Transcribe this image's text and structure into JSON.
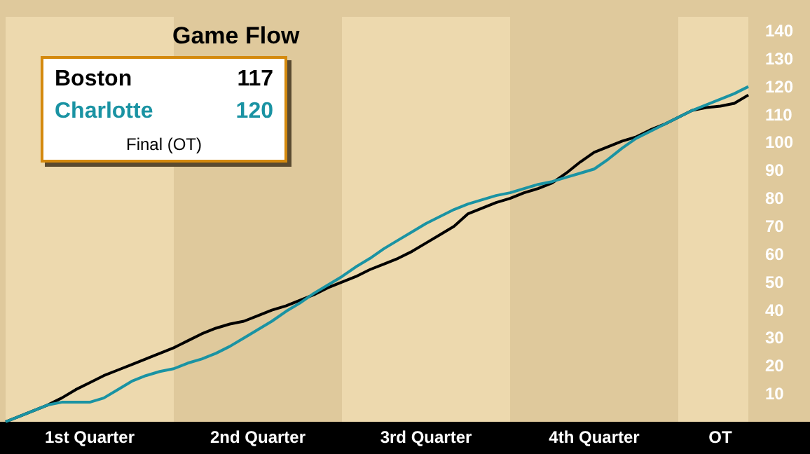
{
  "chart_data": {
    "type": "line",
    "title": "Game Flow",
    "annotations": [
      "117",
      "120",
      "Final (OT)"
    ],
    "legend": "top left",
    "categories": [
      null,
      null,
      null,
      null,
      null,
      null,
      "1st Quarter",
      null,
      null,
      null,
      null,
      null,
      null,
      null,
      null,
      null,
      null,
      null,
      "2nd Quarter",
      null,
      null,
      null,
      null,
      null,
      null,
      null,
      null,
      null,
      null,
      null,
      "3rd Quarter",
      null,
      null,
      null,
      null,
      null,
      null,
      null,
      null,
      null,
      null,
      null,
      "4th Quarter",
      null,
      null,
      null,
      null,
      null,
      null,
      null,
      null,
      "OT",
      null,
      null
    ],
    "ylim": [
      0,
      145
    ],
    "yticks": [
      10,
      20,
      30,
      40,
      50,
      60,
      70,
      80,
      90,
      100,
      110,
      120,
      130,
      140
    ],
    "series": [
      {
        "name": "Boston",
        "color": "#000000",
        "values": [
          0,
          2,
          4,
          6,
          8.5,
          11.5,
          14,
          16.5,
          18.5,
          20.5,
          22.5,
          24.5,
          26.5,
          29,
          31.5,
          33.5,
          35,
          36,
          38,
          40,
          41.5,
          43.5,
          45.5,
          48,
          50,
          52,
          54.5,
          56.5,
          58.5,
          61,
          64,
          67,
          70,
          74.5,
          76.5,
          78.5,
          80,
          82,
          83.5,
          85.5,
          89,
          93,
          96.5,
          98.5,
          100.5,
          102,
          104.5,
          106.5,
          109,
          111.5,
          112.5,
          113,
          114,
          117
        ]
      },
      {
        "name": "Charlotte",
        "color": "#1a93a3",
        "values": [
          0,
          2,
          4,
          6,
          7,
          7,
          7,
          8.5,
          11.5,
          14.5,
          16.5,
          18,
          19,
          21,
          22.5,
          24.5,
          27,
          30,
          33,
          36,
          39.5,
          42.5,
          46,
          49,
          52,
          55.5,
          58.5,
          62,
          65,
          68,
          71,
          73.5,
          76,
          78,
          79.5,
          81,
          82,
          83.5,
          85,
          86,
          87.5,
          89,
          90.5,
          94,
          98,
          101.5,
          104,
          106.5,
          109,
          111.5,
          113.5,
          115.5,
          117.5,
          120
        ]
      }
    ]
  }
}
